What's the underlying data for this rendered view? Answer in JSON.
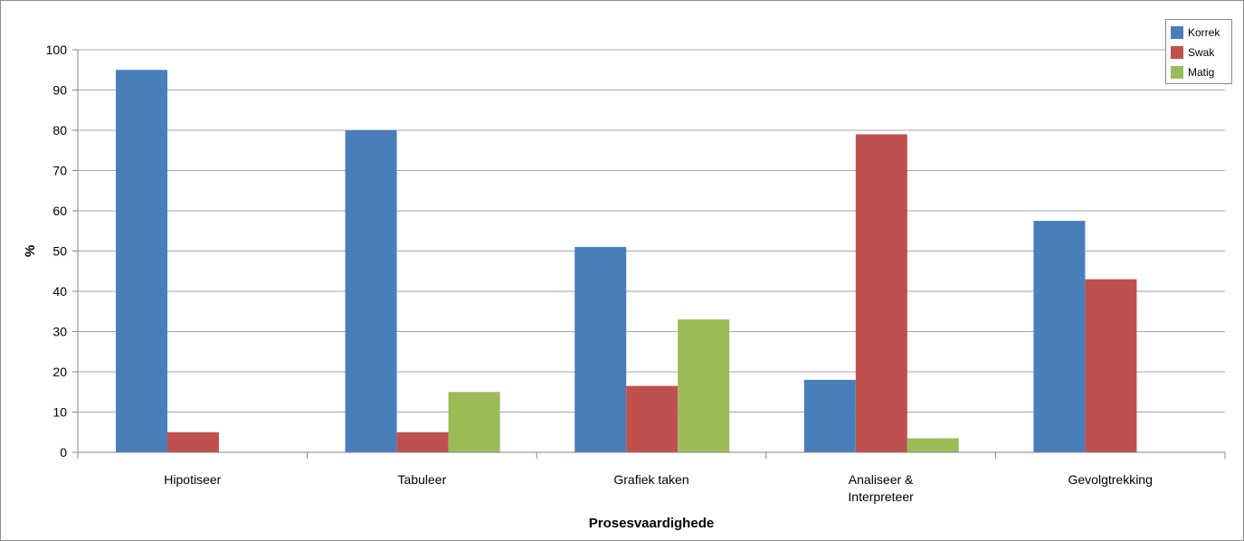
{
  "chart_data": {
    "type": "bar",
    "categories": [
      "Hipotiseer",
      "Tabuleer",
      "Grafiek taken",
      "Analiseer & Interpreteer",
      "Gevolgtrekking"
    ],
    "series": [
      {
        "name": "Korrek",
        "values": [
          95,
          80,
          51,
          18,
          57.5
        ],
        "color": "#4a7ebb"
      },
      {
        "name": "Swak",
        "values": [
          5,
          5,
          16.5,
          79,
          43
        ],
        "color": "#c0504d"
      },
      {
        "name": "Matig",
        "values": [
          0,
          15,
          33,
          3.5,
          0
        ],
        "color": "#9bbb59"
      }
    ],
    "xlabel": "Prosesvaardighede",
    "ylabel": "%",
    "ylim": [
      0,
      100
    ],
    "yticks": [
      "0",
      "10",
      "20",
      "30",
      "40",
      "50",
      "60",
      "70",
      "80",
      "90",
      "100"
    ],
    "grid": true,
    "legend_position": "top-right"
  }
}
